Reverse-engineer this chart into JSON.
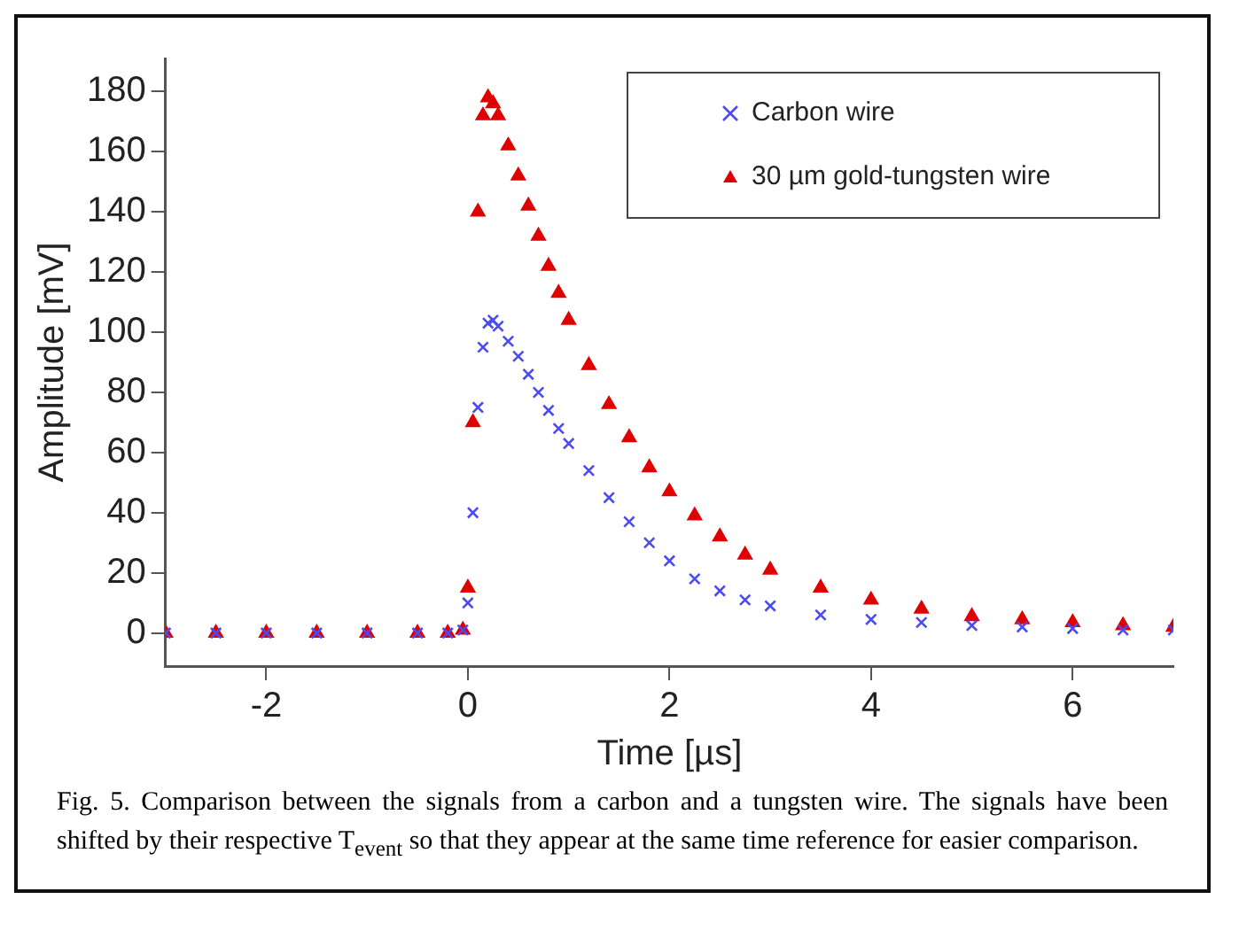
{
  "chart_data": {
    "type": "scatter",
    "xlabel": "Time [µs]",
    "ylabel": "Amplitude [mV]",
    "x": [
      -3,
      -2.5,
      -2,
      -1.5,
      -1,
      -0.5,
      -0.2,
      -0.05,
      0,
      0.05,
      0.1,
      0.15,
      0.2,
      0.25,
      0.3,
      0.4,
      0.5,
      0.6,
      0.7,
      0.8,
      0.9,
      1,
      1.2,
      1.4,
      1.6,
      1.8,
      2,
      2.25,
      2.5,
      2.75,
      3,
      3.5,
      4,
      4.5,
      5,
      5.5,
      6,
      6.5,
      7
    ],
    "series": [
      {
        "name": "Carbon wire",
        "color": "#4b4bf0",
        "marker": "cross",
        "values": [
          0,
          0,
          0,
          0,
          0,
          0,
          0,
          1,
          10,
          40,
          75,
          95,
          103,
          104,
          102,
          97,
          92,
          86,
          80,
          74,
          68,
          63,
          54,
          45,
          37,
          30,
          24,
          18,
          14,
          11,
          9,
          6,
          4.5,
          3.5,
          2.5,
          2,
          1.5,
          1,
          1
        ]
      },
      {
        "name": "30 µm gold-tungsten wire",
        "color": "#e00000",
        "marker": "triangle",
        "values": [
          0,
          0,
          0,
          0,
          0,
          0,
          0,
          1,
          15,
          70,
          140,
          172,
          178,
          176,
          172,
          162,
          152,
          142,
          132,
          122,
          113,
          104,
          89,
          76,
          65,
          55,
          47,
          39,
          32,
          26,
          21,
          15,
          11,
          8,
          5.5,
          4.5,
          3.5,
          2.5,
          2
        ]
      }
    ],
    "xlim": [
      -3,
      7
    ],
    "xticks": [
      -2,
      0,
      2,
      4,
      6
    ],
    "ylim": [
      -11,
      191
    ],
    "yticks": [
      0,
      20,
      40,
      60,
      80,
      100,
      120,
      140,
      160,
      180
    ],
    "grid": false,
    "legend": "top right",
    "annotations": [
      "Fig. 5. Comparison between the signals from a carbon and a tungsten wire. The signals have been shifted by their respective T$_{event}$ so that they appear at the same time reference for easier comparison."
    ]
  }
}
